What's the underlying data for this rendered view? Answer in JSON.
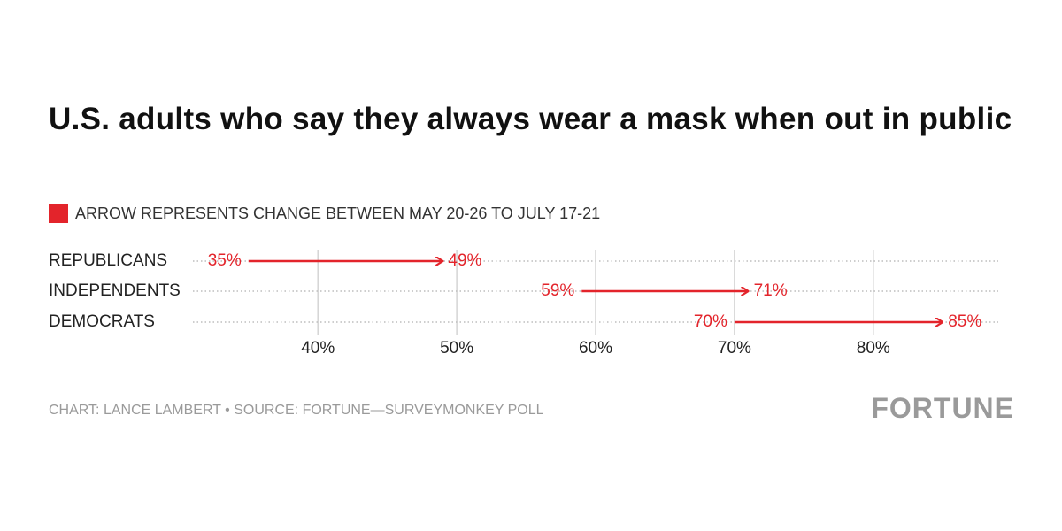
{
  "chart_data": {
    "type": "arrow",
    "title": "U.S. adults who say they always wear a mask when out in public",
    "legend_text": "ARROW REPRESENTS CHANGE BETWEEN MAY 20-26 TO JULY 17-21",
    "categories": [
      "REPUBLICANS",
      "INDEPENDENTS",
      "DEMOCRATS"
    ],
    "series": [
      {
        "values": [
          35,
          59,
          70
        ],
        "value_labels": [
          "35%",
          "59%",
          "70%"
        ]
      },
      {
        "values": [
          49,
          71,
          85
        ],
        "value_labels": [
          "49%",
          "71%",
          "85%"
        ]
      }
    ],
    "color": "#e3242b",
    "xlim": [
      31,
      89
    ],
    "xticks": [
      {
        "value": 40,
        "label": "40%"
      },
      {
        "value": 50,
        "label": "50%"
      },
      {
        "value": 60,
        "label": "60%"
      },
      {
        "value": 70,
        "label": "70%"
      },
      {
        "value": 80,
        "label": "80%"
      }
    ],
    "grid": true,
    "source": "CHART: LANCE LAMBERT • SOURCE: FORTUNE—SURVEYMONKEY POLL",
    "brand": "FORTUNE"
  }
}
